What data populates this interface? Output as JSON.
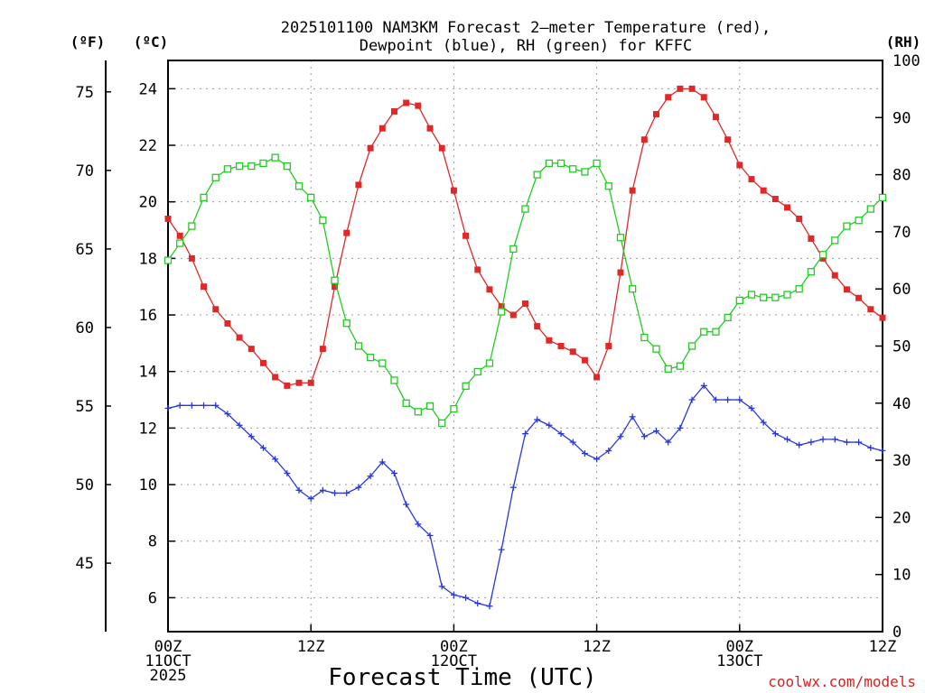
{
  "chart_data": {
    "type": "line",
    "title_line1": "2025101100 NAM3KM Forecast 2—meter Temperature (red),",
    "title_line2": "Dewpoint (blue), RH (green) for KFFC",
    "xlabel": "Forecast Time (UTC)",
    "credit": "coolwx.com/models",
    "credit_color": "#d62020",
    "units": {
      "fahrenheit": "(ºF)",
      "celsius": "(ºC)",
      "rh": "(RH)"
    },
    "x_hours_range": [
      0,
      60
    ],
    "x_ticks": [
      {
        "hour": 0,
        "lines": [
          "00Z",
          "11OCT",
          "2025"
        ]
      },
      {
        "hour": 12,
        "lines": [
          "12Z"
        ]
      },
      {
        "hour": 24,
        "lines": [
          "00Z",
          "12OCT"
        ]
      },
      {
        "hour": 36,
        "lines": [
          "12Z"
        ]
      },
      {
        "hour": 48,
        "lines": [
          "00Z",
          "13OCT"
        ]
      },
      {
        "hour": 60,
        "lines": [
          "12Z"
        ]
      }
    ],
    "celsius_range": [
      4.8,
      25.0
    ],
    "celsius_ticks": [
      6,
      8,
      10,
      12,
      14,
      16,
      18,
      20,
      22,
      24
    ],
    "fahrenheit_ticks": [
      45,
      50,
      55,
      60,
      65,
      70,
      75
    ],
    "rh_range": [
      0,
      100
    ],
    "rh_ticks": [
      0,
      10,
      20,
      30,
      40,
      50,
      60,
      70,
      80,
      90,
      100
    ],
    "hours": [
      0,
      1,
      2,
      3,
      4,
      5,
      6,
      7,
      8,
      9,
      10,
      11,
      12,
      13,
      14,
      15,
      16,
      17,
      18,
      19,
      20,
      21,
      22,
      23,
      24,
      25,
      26,
      27,
      28,
      29,
      30,
      31,
      32,
      33,
      34,
      35,
      36,
      37,
      38,
      39,
      40,
      41,
      42,
      43,
      44,
      45,
      46,
      47,
      48,
      49,
      50,
      51,
      52,
      53,
      54,
      55,
      56,
      57,
      58,
      59,
      60
    ],
    "series": [
      {
        "name": "2-meter Temperature",
        "axis": "celsius",
        "color": "#e02828",
        "marker": "filled-square",
        "values": [
          19.4,
          18.8,
          18.0,
          17.0,
          16.2,
          15.7,
          15.2,
          14.8,
          14.3,
          13.8,
          13.5,
          13.6,
          13.6,
          14.8,
          17.0,
          18.9,
          20.6,
          21.9,
          22.6,
          23.2,
          23.5,
          23.4,
          22.6,
          21.9,
          20.4,
          18.8,
          17.6,
          16.9,
          16.3,
          16.0,
          16.4,
          15.6,
          15.1,
          14.9,
          14.7,
          14.4,
          13.8,
          14.9,
          17.5,
          20.4,
          22.2,
          23.1,
          23.7,
          24.0,
          24.0,
          23.7,
          23.0,
          22.2,
          21.3,
          20.8,
          20.4,
          20.1,
          19.8,
          19.4,
          18.7,
          18.0,
          17.4,
          16.9,
          16.6,
          16.2,
          15.9
        ]
      },
      {
        "name": "Dewpoint",
        "axis": "celsius",
        "color": "#2838e0",
        "marker": "plus",
        "values": [
          12.7,
          12.8,
          12.8,
          12.8,
          12.8,
          12.5,
          12.1,
          11.7,
          11.3,
          10.9,
          10.4,
          9.8,
          9.5,
          9.8,
          9.7,
          9.7,
          9.9,
          10.3,
          10.8,
          10.4,
          9.3,
          8.6,
          8.2,
          6.4,
          6.1,
          6.0,
          5.8,
          5.7,
          7.7,
          9.9,
          11.8,
          12.3,
          12.1,
          11.8,
          11.5,
          11.1,
          10.9,
          11.2,
          11.7,
          12.4,
          11.7,
          11.9,
          11.5,
          12.0,
          13.0,
          13.5,
          13.0,
          13.0,
          13.0,
          12.7,
          12.2,
          11.8,
          11.6,
          11.4,
          11.5,
          11.6,
          11.6,
          11.5,
          11.5,
          11.3,
          11.2
        ]
      },
      {
        "name": "RH",
        "axis": "rh",
        "color": "#22cc22",
        "marker": "open-square",
        "values": [
          65,
          68,
          71,
          76,
          79.5,
          81,
          81.5,
          81.5,
          82,
          83,
          81.5,
          78,
          76,
          72,
          61.5,
          54,
          50,
          48,
          47,
          44,
          40,
          38.5,
          39.5,
          36.5,
          39,
          43,
          45.5,
          47,
          56,
          67,
          74,
          80,
          82,
          82,
          81,
          80.5,
          82,
          78,
          69,
          60,
          51.5,
          49.5,
          46,
          46.5,
          50,
          52.5,
          52.5,
          55,
          58,
          59,
          58.5,
          58.5,
          59,
          60,
          63,
          66,
          68.5,
          71,
          72,
          74,
          76
        ]
      }
    ]
  }
}
